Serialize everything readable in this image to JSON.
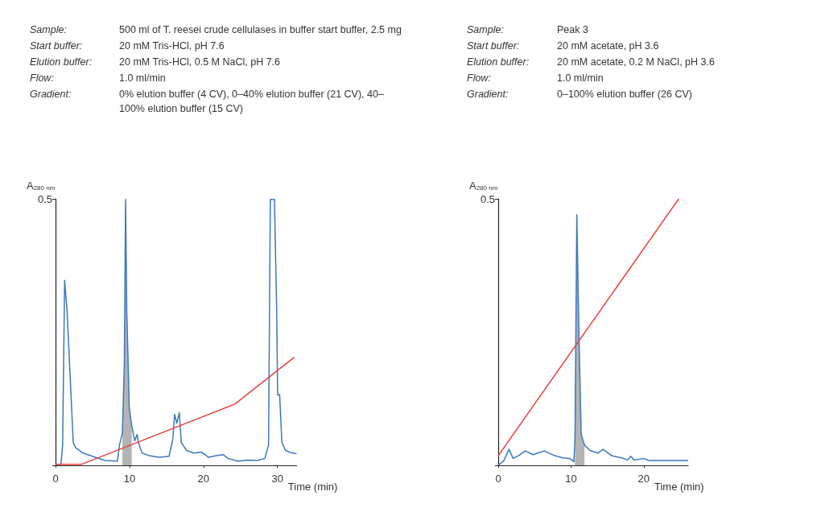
{
  "chart_data": [
    {
      "type": "line",
      "annotations": [
        "Sample: 500 ml of T. reesei crude cellulases in buffer start buffer, 2.5 mg",
        "Start buffer: 20 mM Tris-HCl, pH 7.6",
        "Elution buffer: 20 mM Tris-HCl, 0.5 M NaCl, pH 7.6",
        "Flow: 1.0 ml/min",
        "Gradient: 0% elution buffer (4 CV), 0–40% elution buffer (21 CV), 40–100% elution buffer (15 CV)"
      ],
      "xlabel": "Time (min)",
      "ylabel": "A$_{280 nm}$",
      "xlim": [
        0,
        32.6
      ],
      "xticks": [
        0,
        10,
        20,
        30
      ],
      "ylim": [
        0,
        0.5
      ],
      "yticks": [
        {
          "value": 0,
          "label": null
        },
        0.5
      ],
      "grid": false,
      "marker": "none",
      "line_style": "solid",
      "series": [
        {
          "type": "area",
          "color": "#b4b4b4",
          "x": [
            9.04,
            9.3,
            9.47,
            9.63,
            9.97,
            10.3
          ],
          "values": [
            0.061,
            0.19,
            0.499,
            0.29,
            0.109,
            0.074
          ]
        },
        {
          "type": "line",
          "color": "#3a78c0",
          "x": [
            0.07,
            0.73,
            0.96,
            1.23,
            1.56,
            2.39,
            2.72,
            3.72,
            5.38,
            6.71,
            8.37,
            8.64,
            9.04,
            9.3,
            9.47,
            9.63,
            9.97,
            10.3,
            10.7,
            11.03,
            11.2,
            11.7,
            12.7,
            14.0,
            15.35,
            15.85,
            16.1,
            16.4,
            16.74,
            17.0,
            17.7,
            18.7,
            19.7,
            20.7,
            21.7,
            22.7,
            23.3,
            24.65,
            26.0,
            27.3,
            28.3,
            28.8,
            29.04,
            29.6,
            29.9,
            30.03,
            30.3,
            30.6,
            31.1,
            32.0,
            32.6
          ],
          "values": [
            0.002,
            0.002,
            0.038,
            0.347,
            0.29,
            0.043,
            0.033,
            0.023,
            0.015,
            0.009,
            0.008,
            0.038,
            0.061,
            0.19,
            0.499,
            0.29,
            0.109,
            0.074,
            0.046,
            0.058,
            0.043,
            0.023,
            0.018,
            0.015,
            0.017,
            0.048,
            0.096,
            0.079,
            0.099,
            0.043,
            0.028,
            0.023,
            0.025,
            0.015,
            0.018,
            0.02,
            0.013,
            0.008,
            0.01,
            0.009,
            0.013,
            0.038,
            0.499,
            0.499,
            0.29,
            0.132,
            0.133,
            0.043,
            0.028,
            0.023,
            0.022
          ]
        },
        {
          "type": "line",
          "color": "#e8403a",
          "x": [
            0,
            3.55,
            24.25,
            32.3
          ],
          "values": [
            0.002,
            0.002,
            0.115,
            0.203
          ]
        }
      ]
    },
    {
      "type": "line",
      "annotations": [
        "Sample: Peak 3",
        "Start buffer: 20 mM acetate, pH 3.6",
        "Elution buffer: 20 mM acetate, 0.2 M NaCl, pH 3.6",
        "Flow: 1.0 ml/min",
        "Gradient: 0–100% elution buffer (26 CV)"
      ],
      "xlabel": "Time (min)",
      "ylabel": "A$_{280 nm}$",
      "xlim": [
        0,
        26.1
      ],
      "xticks": [
        0,
        10,
        20
      ],
      "ylim": [
        0,
        0.5
      ],
      "yticks": [
        {
          "value": 0,
          "label": null
        },
        0.5
      ],
      "grid": false,
      "marker": "none",
      "line_style": "solid",
      "series": [
        {
          "type": "area",
          "color": "#b4b4b4",
          "x": [
            10.55,
            10.8,
            11.1,
            11.4,
            11.85
          ],
          "values": [
            0.053,
            0.47,
            0.241,
            0.058,
            0.038
          ]
        },
        {
          "type": "line",
          "color": "#3a78c0",
          "x": [
            0,
            0.74,
            1.48,
            2.04,
            2.78,
            3.7,
            4.8,
            6.3,
            7.8,
            8.9,
            9.8,
            10.4,
            10.55,
            10.8,
            11.1,
            11.4,
            11.85,
            12.6,
            13.7,
            14.4,
            15.6,
            17.0,
            17.8,
            18.2,
            18.7,
            20.0,
            20.7,
            22.2,
            26.1
          ],
          "values": [
            0,
            0.008,
            0.03,
            0.013,
            0.018,
            0.027,
            0.02,
            0.027,
            0.018,
            0.014,
            0.013,
            0.007,
            0.053,
            0.47,
            0.241,
            0.058,
            0.038,
            0.028,
            0.023,
            0.03,
            0.018,
            0.014,
            0.01,
            0.017,
            0.01,
            0.013,
            0.009,
            0.009,
            0.009
          ]
        },
        {
          "type": "line",
          "color": "#e8403a",
          "x": [
            0,
            24.8
          ],
          "values": [
            0.018,
            0.5
          ]
        }
      ]
    }
  ]
}
